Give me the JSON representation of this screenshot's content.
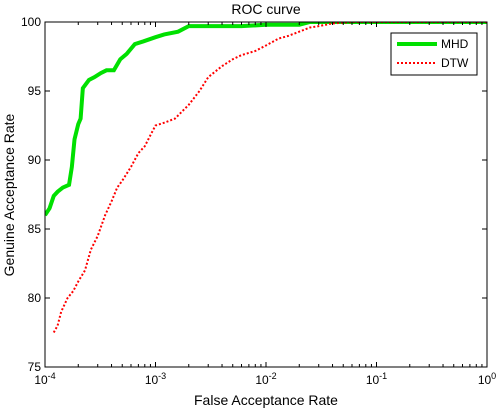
{
  "chart_data": {
    "type": "line",
    "title": "ROC curve",
    "xlabel": "False Acceptance Rate",
    "ylabel": "Genuine Acceptance Rate",
    "x_scale": "log",
    "xlim": [
      0.0001,
      1
    ],
    "ylim": [
      75,
      100
    ],
    "x_ticks": [
      {
        "value": 0.0001,
        "base": "10",
        "exp": "-4"
      },
      {
        "value": 0.001,
        "base": "10",
        "exp": "-3"
      },
      {
        "value": 0.01,
        "base": "10",
        "exp": "-2"
      },
      {
        "value": 0.1,
        "base": "10",
        "exp": "-1"
      },
      {
        "value": 1,
        "base": "10",
        "exp": "0"
      }
    ],
    "y_ticks": [
      75,
      80,
      85,
      90,
      95,
      100
    ],
    "grid": false,
    "legend_position": "top-right",
    "series": [
      {
        "name": "MHD",
        "color": "#00e000",
        "style": "solid",
        "x": [
          0.0001,
          0.00011,
          0.00012,
          0.00013,
          0.000145,
          0.000165,
          0.000175,
          0.000185,
          0.0002,
          0.00021,
          0.00022,
          0.00025,
          0.00028,
          0.00032,
          0.00036,
          0.00042,
          0.00048,
          0.00055,
          0.00065,
          0.00078,
          0.001,
          0.0012,
          0.0016,
          0.002,
          0.003,
          0.006,
          0.01,
          0.02,
          0.025,
          0.05,
          0.1,
          1
        ],
        "y": [
          86.0,
          86.5,
          87.4,
          87.7,
          88.0,
          88.2,
          89.5,
          91.5,
          92.6,
          93.0,
          95.2,
          95.8,
          96.0,
          96.3,
          96.5,
          96.5,
          97.3,
          97.7,
          98.4,
          98.6,
          98.9,
          99.1,
          99.3,
          99.7,
          99.7,
          99.7,
          99.8,
          99.8,
          100.0,
          100.0,
          100.0,
          100.0
        ]
      },
      {
        "name": "DTW",
        "color": "#ff0000",
        "style": "dotted",
        "x": [
          0.00012,
          0.00013,
          0.00014,
          0.00016,
          0.00018,
          0.0002,
          0.00023,
          0.00026,
          0.0003,
          0.00035,
          0.0004,
          0.00045,
          0.0005,
          0.0006,
          0.0007,
          0.0008,
          0.0009,
          0.001,
          0.0012,
          0.0015,
          0.002,
          0.0025,
          0.003,
          0.004,
          0.005,
          0.006,
          0.008,
          0.01,
          0.013,
          0.016,
          0.02,
          0.025,
          0.03,
          0.04,
          0.06,
          0.1,
          1
        ],
        "y": [
          77.5,
          78.0,
          79.0,
          80.0,
          80.5,
          81.2,
          82.0,
          83.5,
          84.5,
          86.0,
          87.0,
          88.0,
          88.5,
          89.5,
          90.5,
          91.0,
          91.8,
          92.5,
          92.7,
          93.0,
          94.0,
          95.0,
          96.0,
          96.8,
          97.3,
          97.6,
          97.9,
          98.3,
          98.8,
          99.0,
          99.3,
          99.6,
          99.7,
          99.9,
          100.0,
          100.0,
          100.0
        ]
      }
    ]
  }
}
